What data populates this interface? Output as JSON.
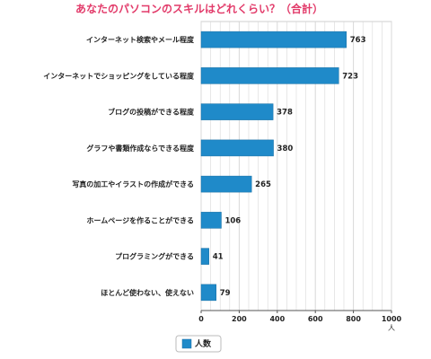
{
  "chart_data": {
    "type": "bar",
    "orientation": "horizontal",
    "title": "あなたのパソコンのスキルはどれくらい？（合計）",
    "categories": [
      "インターネット検索やメール程度",
      "インターネットでショッピングをしている程度",
      "ブログの投稿ができる程度",
      "グラフや書類作成ならできる程度",
      "写真の加工やイラストの作成ができる",
      "ホームページを作ることができる",
      "プログラミングができる",
      "ほとんど使わない、使えない"
    ],
    "series": [
      {
        "name": "人数",
        "values": [
          763,
          723,
          378,
          380,
          265,
          106,
          41,
          79
        ]
      }
    ],
    "value_labels": [
      "763",
      "723",
      "378",
      "380",
      "265",
      "106",
      "41",
      "79"
    ],
    "xlim": [
      0,
      1000
    ],
    "xticks": [
      0,
      200,
      400,
      600,
      800,
      1000
    ],
    "xtick_labels": [
      "0",
      "200",
      "400",
      "600",
      "800",
      "1000"
    ],
    "x_unit": "人",
    "grid": true,
    "legend_position": "bottom",
    "colors": {
      "bar": "#1f8ac9",
      "bar_border": "#1a6fa3",
      "title": "#e23b6a",
      "grid": "#d8d8d8",
      "axis": "#555555"
    }
  }
}
